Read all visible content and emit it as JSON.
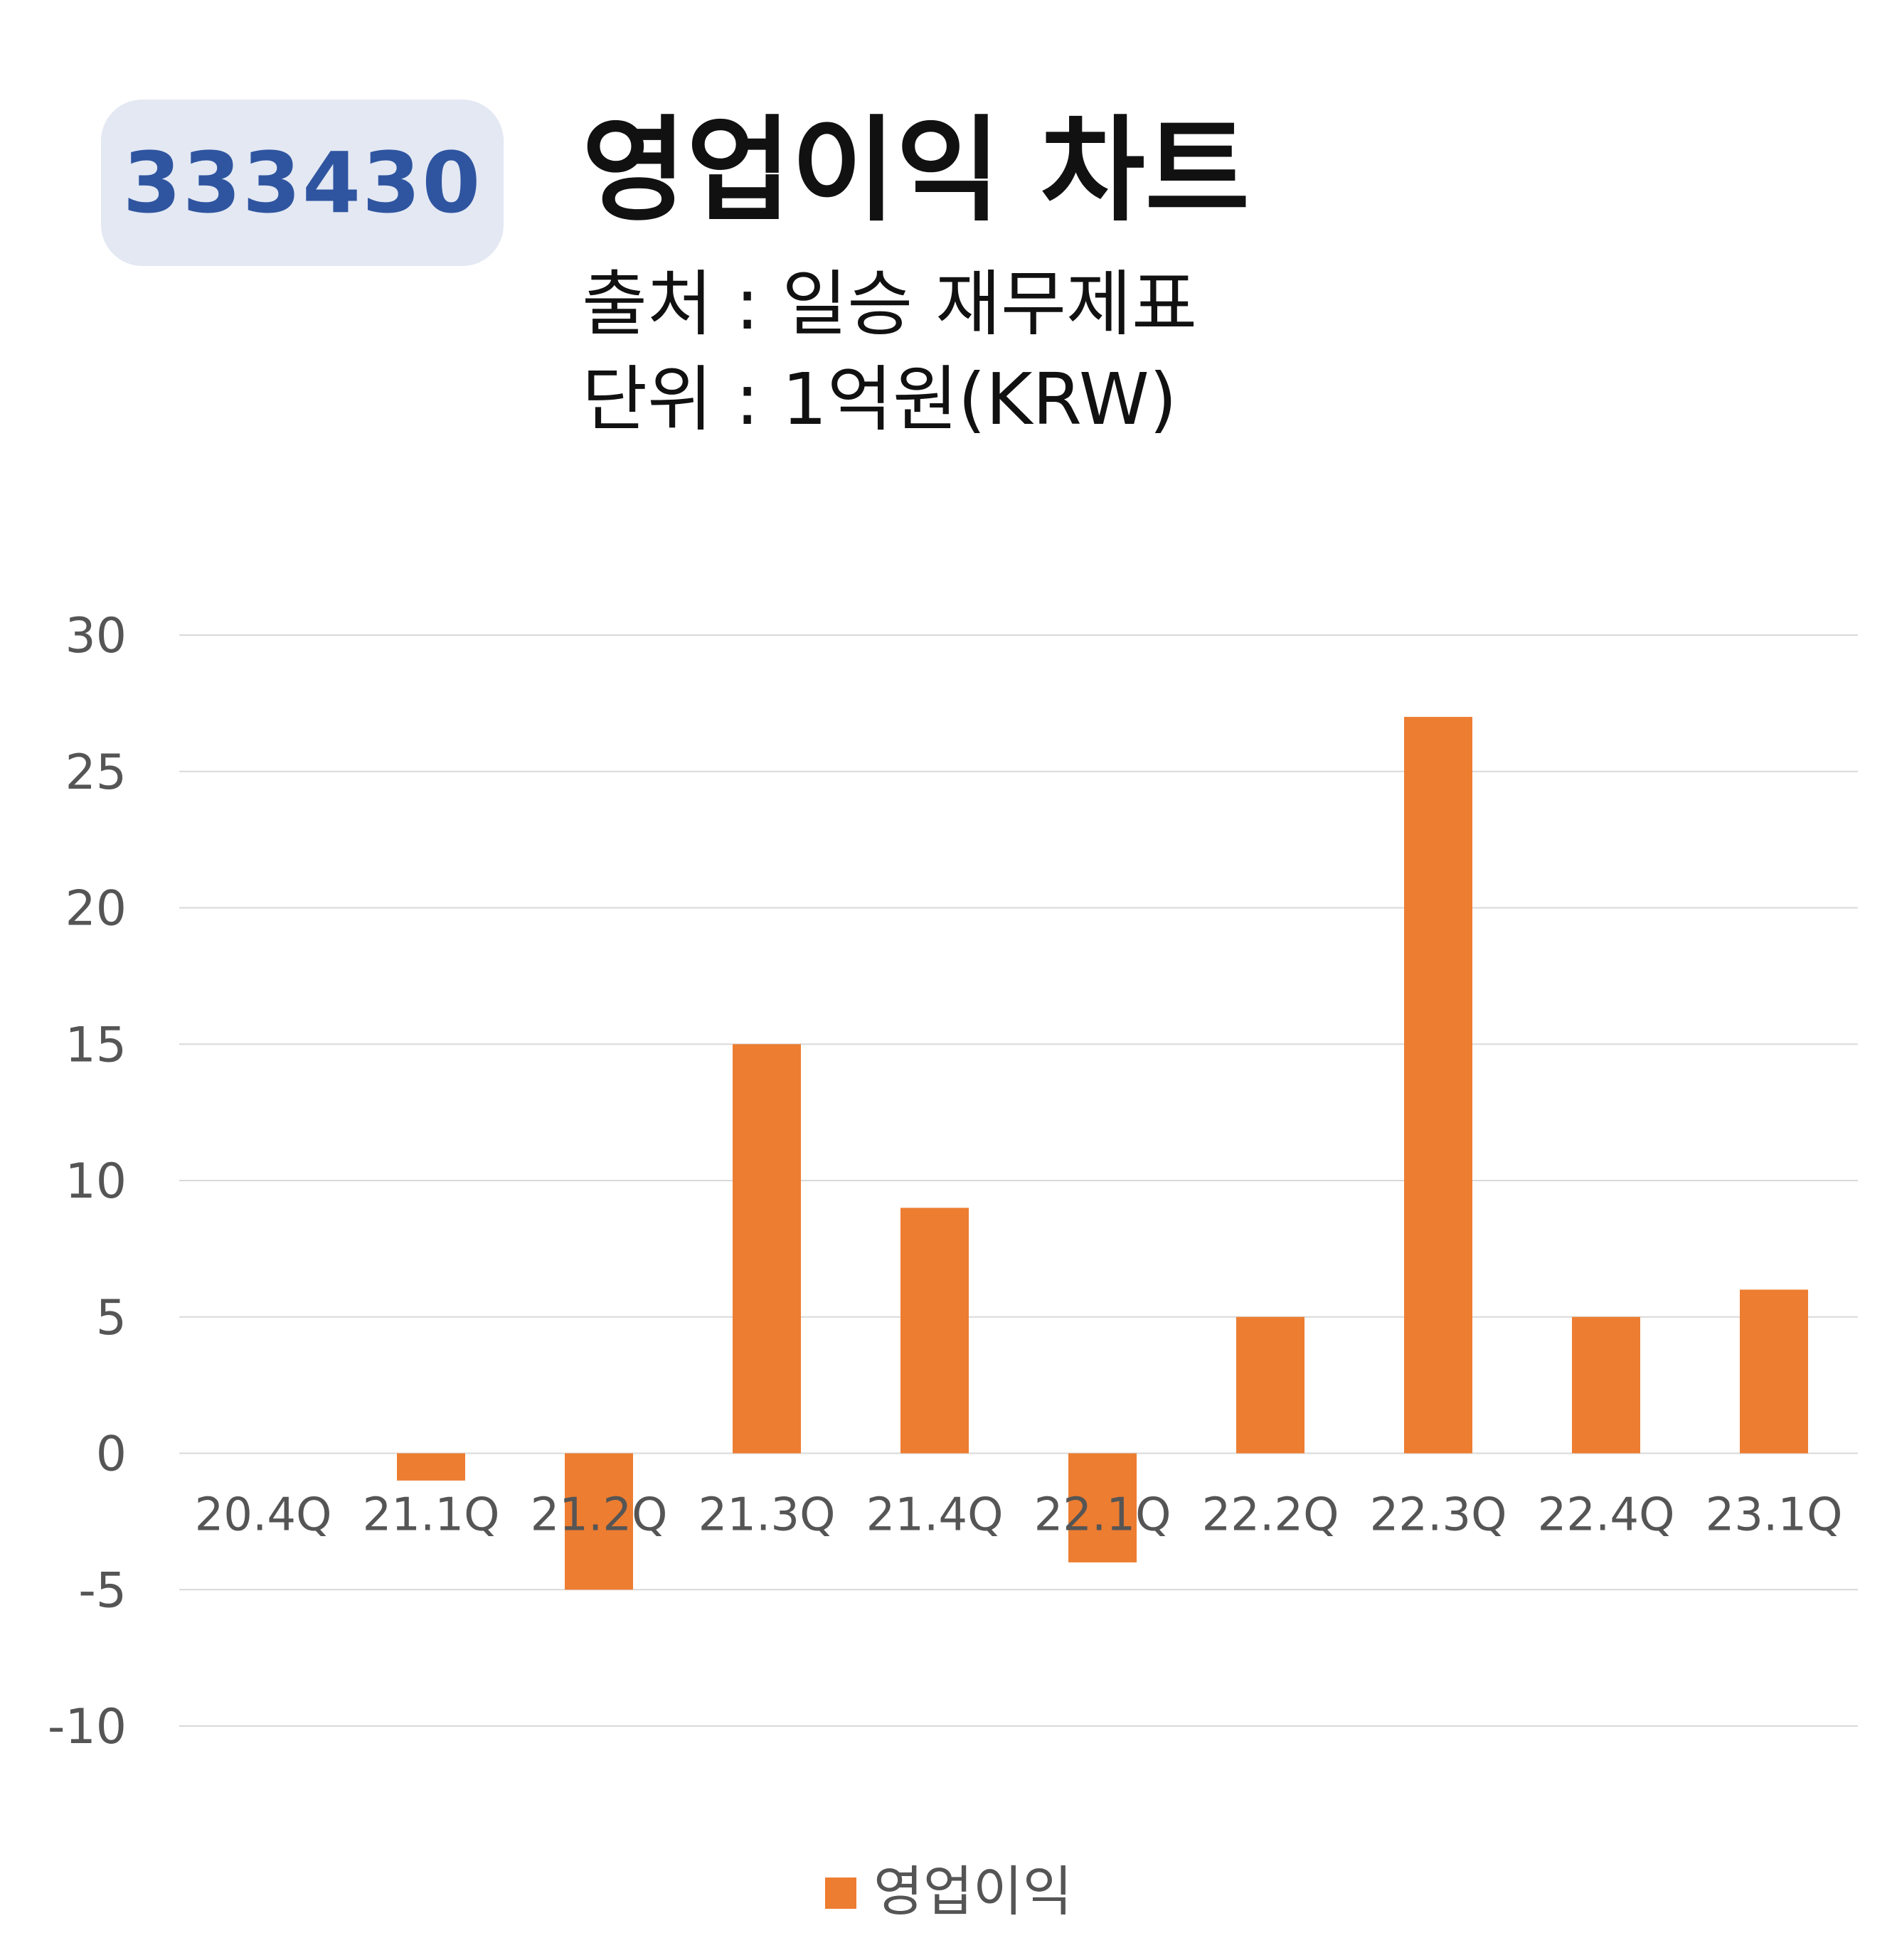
{
  "header": {
    "code": "333430",
    "title": "영업이익 차트",
    "source": "출처 : 일승 재무제표",
    "unit": "단위 : 1억원(KRW)"
  },
  "colors": {
    "bar": "#ED7D31",
    "badge_bg": "#E3E8F3",
    "badge_text": "#2F55A0",
    "grid": "#D9D9D9",
    "axis_text": "#595959"
  },
  "chart_data": {
    "type": "bar",
    "categories": [
      "20.4Q",
      "21.1Q",
      "21.2Q",
      "21.3Q",
      "21.4Q",
      "22.1Q",
      "22.2Q",
      "22.3Q",
      "22.4Q",
      "23.1Q"
    ],
    "series": [
      {
        "name": "영업이익",
        "values": [
          0,
          -1,
          -5,
          15,
          9,
          -4,
          5,
          27,
          5,
          6
        ]
      }
    ],
    "ylim": [
      -10,
      30
    ],
    "yticks": [
      30,
      25,
      20,
      15,
      10,
      5,
      0,
      -5,
      -10
    ],
    "grid": true,
    "legend": "bottom"
  }
}
